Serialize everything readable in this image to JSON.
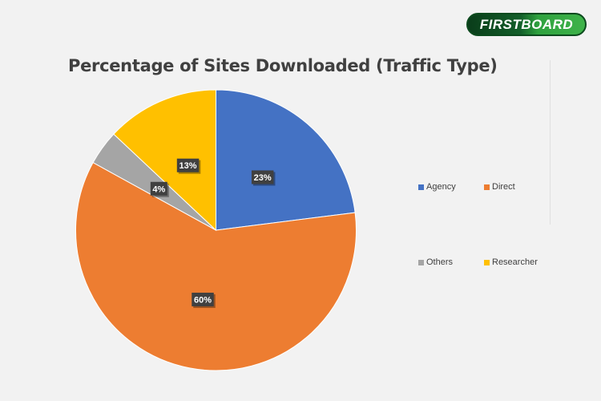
{
  "logo": {
    "text": "FIRSTBOARD"
  },
  "chart_data": {
    "type": "pie",
    "title": "Percentage of Sites Downloaded (Traffic Type)",
    "categories": [
      "Agency",
      "Direct",
      "Others",
      "Researcher"
    ],
    "values": [
      23,
      60,
      4,
      13
    ],
    "data_labels": [
      "23%",
      "60%",
      "4%",
      "13%"
    ],
    "colors": [
      "#4472c4",
      "#ed7d31",
      "#a5a5a5",
      "#ffc000"
    ],
    "start_angle_deg": 0,
    "direction": "clockwise",
    "legend_position": "right"
  }
}
